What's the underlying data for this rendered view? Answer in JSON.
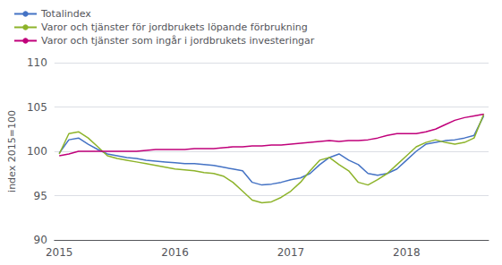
{
  "chart_data": {
    "type": "line",
    "ylabel": "index 2015=100",
    "categories": [
      "2015",
      null,
      null,
      null,
      null,
      null,
      null,
      null,
      null,
      null,
      null,
      null,
      "2016",
      null,
      null,
      null,
      null,
      null,
      null,
      null,
      null,
      null,
      null,
      null,
      "2017",
      null,
      null,
      null,
      null,
      null,
      null,
      null,
      null,
      null,
      null,
      null,
      "2018",
      null,
      null,
      null,
      null,
      null,
      null,
      null,
      null
    ],
    "series": [
      {
        "name": "Totalindex",
        "color": "#4472c4",
        "values": [
          99.8,
          101.3,
          101.5,
          100.8,
          100.2,
          99.7,
          99.5,
          99.3,
          99.2,
          99.0,
          98.9,
          98.8,
          98.7,
          98.6,
          98.6,
          98.5,
          98.4,
          98.2,
          98.0,
          97.8,
          96.5,
          96.2,
          96.3,
          96.5,
          96.8,
          97.0,
          97.5,
          98.5,
          99.3,
          99.7,
          99.0,
          98.5,
          97.5,
          97.3,
          97.5,
          98.0,
          99.0,
          100.0,
          100.8,
          101.0,
          101.2,
          101.3,
          101.5,
          101.8,
          104.0
        ]
      },
      {
        "name": "Varor och tjänster för jordbrukets löpande förbrukning",
        "color": "#8db32a",
        "values": [
          99.7,
          102.0,
          102.2,
          101.5,
          100.5,
          99.5,
          99.2,
          99.0,
          98.8,
          98.6,
          98.4,
          98.2,
          98.0,
          97.9,
          97.8,
          97.6,
          97.5,
          97.2,
          96.5,
          95.5,
          94.5,
          94.2,
          94.3,
          94.8,
          95.5,
          96.5,
          97.8,
          99.0,
          99.3,
          98.5,
          97.8,
          96.5,
          96.2,
          96.8,
          97.5,
          98.5,
          99.5,
          100.5,
          101.0,
          101.3,
          101.0,
          100.8,
          101.0,
          101.5,
          104.2
        ]
      },
      {
        "name": "Varor och tjänster som ingår i jordbrukets investeringar",
        "color": "#c0007a",
        "values": [
          99.5,
          99.7,
          100.0,
          100.0,
          100.0,
          100.0,
          100.0,
          100.0,
          100.0,
          100.1,
          100.2,
          100.2,
          100.2,
          100.2,
          100.3,
          100.3,
          100.3,
          100.4,
          100.5,
          100.5,
          100.6,
          100.6,
          100.7,
          100.7,
          100.8,
          100.9,
          101.0,
          101.1,
          101.2,
          101.1,
          101.2,
          101.2,
          101.3,
          101.5,
          101.8,
          102.0,
          102.0,
          102.0,
          102.2,
          102.5,
          103.0,
          103.5,
          103.8,
          104.0,
          104.2
        ]
      }
    ],
    "ylim": [
      90,
      110
    ],
    "yticks": [
      90,
      95,
      100,
      105,
      110
    ],
    "grid": true,
    "legend": "upper left"
  }
}
